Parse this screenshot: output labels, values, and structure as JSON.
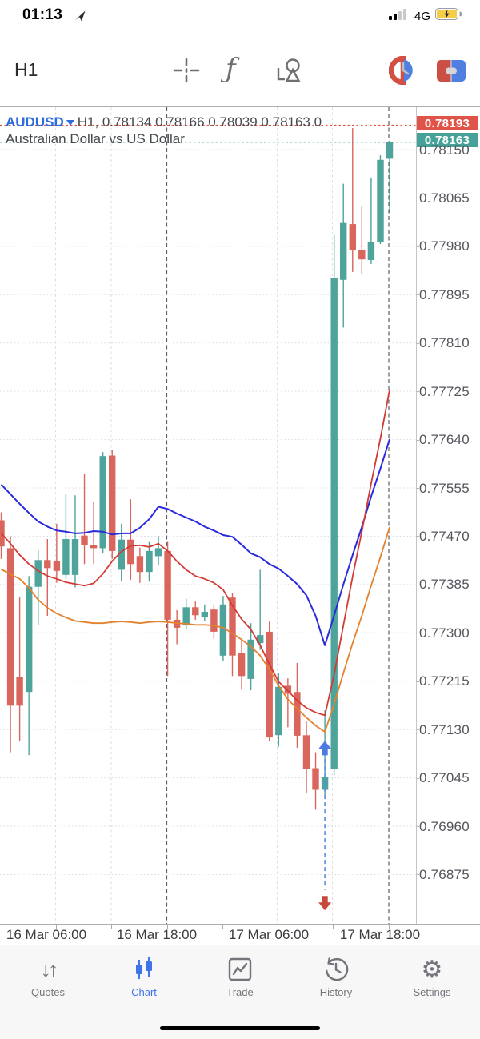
{
  "status_bar": {
    "time": "01:13",
    "network": "4G"
  },
  "toolbar": {
    "timeframe": "H1"
  },
  "chart": {
    "symbol": "AUDUSD",
    "ohlc_info": "H1, 0.78134 0.78166 0.78039 0.78163 0",
    "description": "Australian Dollar vs US Dollar",
    "ask": "0.78193",
    "bid": "0.78163",
    "colors": {
      "bull": "#4EA39A",
      "bear": "#D9655C",
      "ask_line": "#E0544A",
      "bid_line": "#4EA39A",
      "buy_arrow": "#4C79E2",
      "sell_arrow": "#C64A3C"
    },
    "y_axis": {
      "labels": [
        "0.78150",
        "0.78065",
        "0.77980",
        "0.77895",
        "0.77810",
        "0.77725",
        "0.77640",
        "0.77555",
        "0.77470",
        "0.77385",
        "0.77300",
        "0.77215",
        "0.77130",
        "0.77045",
        "0.76960",
        "0.76875"
      ]
    },
    "x_axis": {
      "labels": [
        "16 Mar 06:00",
        "16 Mar 18:00",
        "17 Mar 06:00",
        "17 Mar 18:00"
      ]
    },
    "chart_data": {
      "type": "candlestick",
      "symbol": "AUDUSD",
      "timeframe": "H1",
      "y_top_tick": 0.7815,
      "y_tick_step": 0.00085,
      "ylim": [
        0.7679,
        0.7821
      ],
      "grid": true,
      "candles": [
        [
          0.77498,
          0.77512,
          0.7743,
          0.77452
        ],
        [
          0.77449,
          0.7747,
          0.7709,
          0.77172
        ],
        [
          0.77222,
          0.77363,
          0.7711,
          0.77172
        ],
        [
          0.77196,
          0.774,
          0.77085,
          0.77381
        ],
        [
          0.77381,
          0.77445,
          0.77313,
          0.77428
        ],
        [
          0.77428,
          0.77465,
          0.7733,
          0.77414
        ],
        [
          0.77426,
          0.77492,
          0.77388,
          0.77409
        ],
        [
          0.77402,
          0.77545,
          0.77395,
          0.77465
        ],
        [
          0.77402,
          0.77542,
          0.7738,
          0.77465
        ],
        [
          0.77471,
          0.7758,
          0.77421,
          0.77454
        ],
        [
          0.77454,
          0.7753,
          0.77421,
          0.77449
        ],
        [
          0.77449,
          0.77618,
          0.7744,
          0.77611
        ],
        [
          0.77612,
          0.77622,
          0.7743,
          0.77444
        ],
        [
          0.77411,
          0.77492,
          0.7739,
          0.77464
        ],
        [
          0.77464,
          0.77535,
          0.77393,
          0.77421
        ],
        [
          0.77435,
          0.7745,
          0.77388,
          0.77407
        ],
        [
          0.77407,
          0.7746,
          0.7739,
          0.77444
        ],
        [
          0.77435,
          0.7747,
          0.7742,
          0.77449
        ],
        [
          0.77444,
          0.7746,
          0.77224,
          0.77323
        ],
        [
          0.77323,
          0.7734,
          0.7728,
          0.77309
        ],
        [
          0.77313,
          0.7736,
          0.77306,
          0.77345
        ],
        [
          0.77345,
          0.77355,
          0.77323,
          0.77331
        ],
        [
          0.77327,
          0.7735,
          0.7732,
          0.77337
        ],
        [
          0.77341,
          0.7735,
          0.7729,
          0.77302
        ],
        [
          0.7726,
          0.77365,
          0.7725,
          0.7735
        ],
        [
          0.77362,
          0.7737,
          0.77224,
          0.7726
        ],
        [
          0.77264,
          0.7729,
          0.772,
          0.77224
        ],
        [
          0.77219,
          0.77317,
          0.77199,
          0.77288
        ],
        [
          0.77282,
          0.77411,
          0.7727,
          0.77296
        ],
        [
          0.77302,
          0.7732,
          0.77109,
          0.77116
        ],
        [
          0.7712,
          0.7723,
          0.771,
          0.77205
        ],
        [
          0.77207,
          0.7722,
          0.77134,
          0.77193
        ],
        [
          0.77196,
          0.77247,
          0.77098,
          0.77119
        ],
        [
          0.7712,
          0.77144,
          0.77018,
          0.7706
        ],
        [
          0.77062,
          0.7709,
          0.76989,
          0.77024
        ],
        [
          0.77024,
          0.77164,
          0.77012,
          0.77046
        ],
        [
          0.7706,
          0.78,
          0.7705,
          0.77925
        ],
        [
          0.77921,
          0.7809,
          0.77837,
          0.78021
        ],
        [
          0.78019,
          0.78188,
          0.77935,
          0.77974
        ],
        [
          0.77974,
          0.7805,
          0.77932,
          0.77957
        ],
        [
          0.77956,
          0.78101,
          0.77949,
          0.77988
        ],
        [
          0.77988,
          0.7814,
          0.77984,
          0.78132
        ],
        [
          0.78134,
          0.78166,
          0.78039,
          0.78163
        ]
      ],
      "moving_averages": [
        {
          "name": "ma-slow-blue",
          "color": "#2A2ADB",
          "width": 2,
          "values": [
            0.77561,
            0.77544,
            0.77527,
            0.77511,
            0.77496,
            0.77487,
            0.7748,
            0.77478,
            0.77475,
            0.77476,
            0.77479,
            0.77478,
            0.77473,
            0.77475,
            0.77475,
            0.77485,
            0.775,
            0.77522,
            0.77518,
            0.7751,
            0.77503,
            0.77496,
            0.77487,
            0.7748,
            0.77472,
            0.77469,
            0.77455,
            0.7744,
            0.77433,
            0.77421,
            0.77413,
            0.774,
            0.77386,
            0.77366,
            0.7733,
            0.77278,
            0.77331,
            0.77385,
            0.77437,
            0.77486,
            0.7754,
            0.77589,
            0.77641
          ]
        },
        {
          "name": "ma-medium-red",
          "color": "#D23B35",
          "width": 1.8,
          "values": [
            0.77475,
            0.77457,
            0.77437,
            0.77421,
            0.77409,
            0.774,
            0.77395,
            0.77389,
            0.77386,
            0.77383,
            0.77387,
            0.77404,
            0.77426,
            0.77443,
            0.77453,
            0.77454,
            0.77451,
            0.77457,
            0.77444,
            0.77426,
            0.77411,
            0.774,
            0.77395,
            0.77388,
            0.77376,
            0.77348,
            0.77324,
            0.77306,
            0.77278,
            0.77245,
            0.77214,
            0.77198,
            0.77181,
            0.77168,
            0.7716,
            0.77155,
            0.77227,
            0.77313,
            0.77399,
            0.77478,
            0.77563,
            0.77642,
            0.77728
          ]
        },
        {
          "name": "ma-fast-orange",
          "color": "#E2822F",
          "width": 1.8,
          "values": [
            0.77412,
            0.77403,
            0.77395,
            0.77379,
            0.77358,
            0.77344,
            0.77334,
            0.77327,
            0.77321,
            0.77319,
            0.77317,
            0.77317,
            0.77319,
            0.7732,
            0.77319,
            0.77317,
            0.77319,
            0.7732,
            0.77319,
            0.77317,
            0.77316,
            0.77314,
            0.77314,
            0.77313,
            0.77309,
            0.77299,
            0.77288,
            0.77276,
            0.7726,
            0.77236,
            0.77207,
            0.77183,
            0.77167,
            0.77151,
            0.77137,
            0.77126,
            0.77175,
            0.77229,
            0.77282,
            0.7733,
            0.77383,
            0.77433,
            0.77486
          ]
        }
      ],
      "annotations": {
        "index": 35,
        "buy_arrow_price": 0.7711,
        "sell_arrow_price": 0.76812,
        "dash_from_price": 0.77078,
        "dash_to_price": 0.76848
      }
    }
  },
  "tab_bar": {
    "items": [
      {
        "label": "Quotes",
        "active": false
      },
      {
        "label": "Chart",
        "active": true
      },
      {
        "label": "Trade",
        "active": false
      },
      {
        "label": "History",
        "active": false
      },
      {
        "label": "Settings",
        "active": false
      }
    ]
  }
}
